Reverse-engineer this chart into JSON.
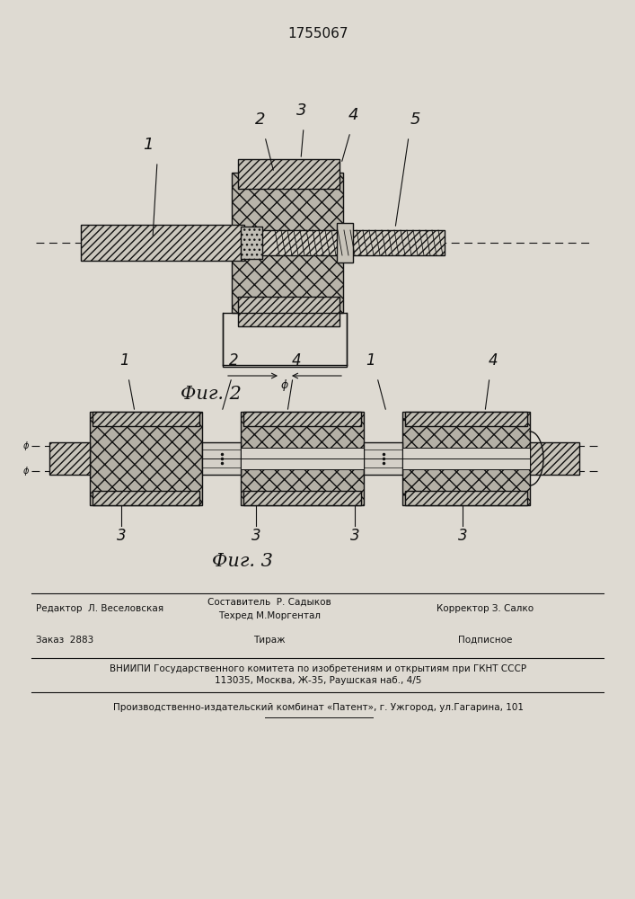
{
  "patent_number": "1755067",
  "fig2_label": "Фиг. 2",
  "fig3_label": "Фиг. 3",
  "footer_editor": "Редактор  Л. Веселовская",
  "footer_comp1": "Составитель  Р. Садыков",
  "footer_tech": "Техред М.Моргентал",
  "footer_corr": "Корректор З. Салко",
  "footer_order": "Заказ  2883",
  "footer_tirazh": "Тираж",
  "footer_podp": "Подписное",
  "footer_vniip": "ВНИИПИ Государственного комитета по изобретениям и открытиям при ГКНТ СССР",
  "footer_addr": "113035, Москва, Ж-35, Раушская наб., 4/5",
  "footer_plant": "Производственно-издательский комбинат «Патент», г. Ужгород, ул.Гагарина, 101",
  "bg_color": "#dedad2",
  "lc": "#111111"
}
